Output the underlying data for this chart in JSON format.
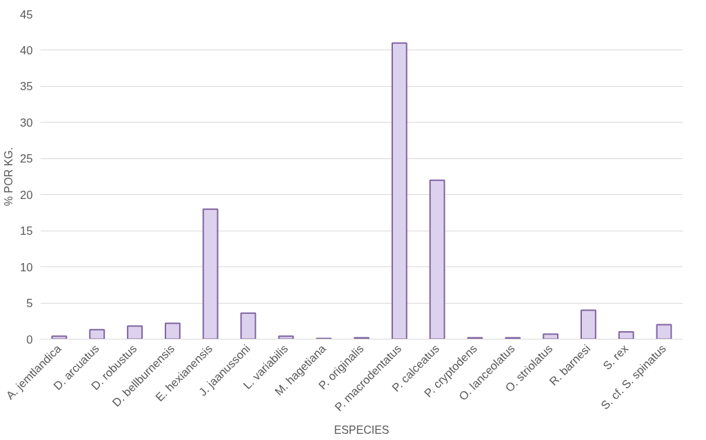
{
  "chart_data": {
    "type": "bar",
    "xlabel": "ESPECIES",
    "ylabel": "% POR KG.",
    "categories": [
      "A. jemtlandica",
      "D. arcuatus",
      "D. robustus",
      "D. bellburnensis",
      "E. hexianensis",
      "J. jaanussoni",
      "L. variabilis",
      "M. hagetiana",
      "P. originalis",
      "P. macrodentatus",
      "P. calceatus",
      "P. cryptodens",
      "O. lanceolatus",
      "O. striolatus",
      "R. barnesi",
      "S. rex",
      "S. cf. S. spinatus"
    ],
    "values": [
      0.4,
      1.3,
      1.8,
      2.2,
      18,
      3.6,
      0.4,
      0.1,
      0.2,
      41,
      22,
      0.2,
      0.2,
      0.7,
      4.0,
      1.0,
      2.0
    ],
    "color": "#ddd2ee",
    "ylim": [
      0,
      45
    ],
    "yticks": [
      0,
      5,
      10,
      15,
      20,
      25,
      30,
      35,
      40,
      45
    ],
    "grid": "y"
  }
}
